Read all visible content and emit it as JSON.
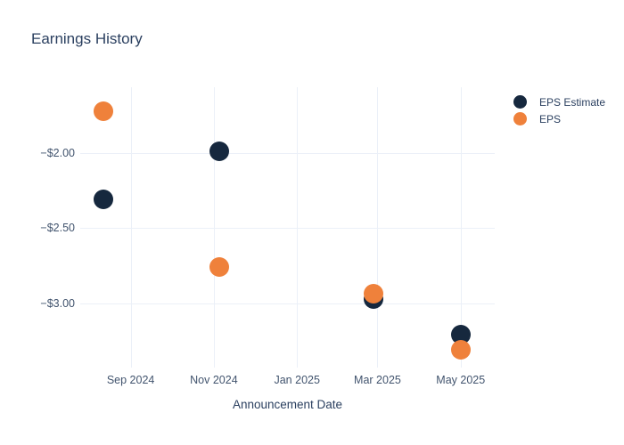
{
  "title": "Earnings History",
  "colors": {
    "background": "#ffffff",
    "grid": "#ebf0f8",
    "title_text": "#2a3f5f",
    "tick_text": "#42546e",
    "eps_estimate": "#16283e",
    "eps": "#ef813b"
  },
  "legend": {
    "position": "right",
    "items": [
      {
        "label": "EPS Estimate",
        "color": "#16283e"
      },
      {
        "label": "EPS",
        "color": "#ef813b"
      }
    ]
  },
  "chart_data": {
    "type": "scatter",
    "title": "Earnings History",
    "xlabel": "Announcement Date",
    "ylabel": "",
    "grid": true,
    "legend_position": "right",
    "xlim": [
      "2024-07-26",
      "2025-05-26"
    ],
    "ylim": [
      -3.43,
      -1.56
    ],
    "xaxis_ticks": [
      {
        "date": "2024-09-01",
        "label": "Sep 2024"
      },
      {
        "date": "2024-11-01",
        "label": "Nov 2024"
      },
      {
        "date": "2025-01-01",
        "label": "Jan 2025"
      },
      {
        "date": "2025-03-01",
        "label": "Mar 2025"
      },
      {
        "date": "2025-05-01",
        "label": "May 2025"
      }
    ],
    "yaxis_ticks": [
      {
        "value": -2.0,
        "label": "−$2.00"
      },
      {
        "value": -2.5,
        "label": "−$2.50"
      },
      {
        "value": -3.0,
        "label": "−$3.00"
      }
    ],
    "series": [
      {
        "name": "EPS Estimate",
        "color": "#16283e",
        "points": [
          {
            "x": "2024-08-12",
            "y": -2.31
          },
          {
            "x": "2024-11-05",
            "y": -1.99
          },
          {
            "x": "2025-02-26",
            "y": -2.97
          },
          {
            "x": "2025-05-01",
            "y": -3.21
          }
        ]
      },
      {
        "name": "EPS",
        "color": "#ef813b",
        "points": [
          {
            "x": "2024-08-12",
            "y": -1.72
          },
          {
            "x": "2024-11-05",
            "y": -2.76
          },
          {
            "x": "2025-02-26",
            "y": -2.94
          },
          {
            "x": "2025-05-01",
            "y": -3.31
          }
        ]
      }
    ]
  }
}
